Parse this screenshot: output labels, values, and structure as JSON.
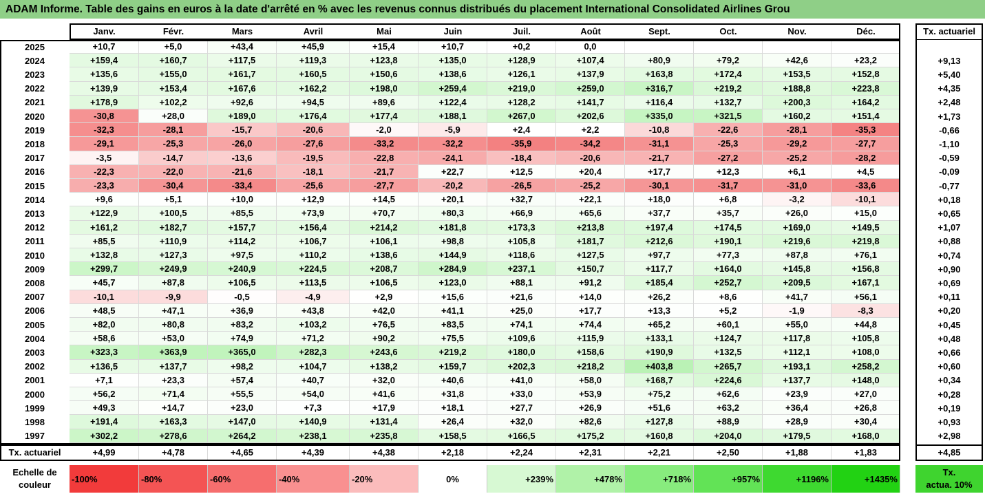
{
  "title": "ADAM Informe. Table des gains en euros à la date d'arrêté en % avec les revenus connus distribués du placement International Consolidated Airlines Grou",
  "months": [
    "Janv.",
    "Févr.",
    "Mars",
    "Avril",
    "Mai",
    "Juin",
    "Juil.",
    "Août",
    "Sept.",
    "Oct.",
    "Nov.",
    "Déc."
  ],
  "tx_header": "Tx. actuariel",
  "rows": [
    {
      "year": "2025",
      "values": [
        "+10,7",
        "+5,0",
        "+43,4",
        "+45,9",
        "+15,4",
        "+10,7",
        "+0,2",
        "0,0",
        "",
        "",
        "",
        ""
      ],
      "tx": ""
    },
    {
      "year": "2024",
      "values": [
        "+159,4",
        "+160,7",
        "+117,5",
        "+119,3",
        "+123,8",
        "+135,0",
        "+128,9",
        "+107,4",
        "+80,9",
        "+79,2",
        "+42,6",
        "+23,2"
      ],
      "tx": "+9,13"
    },
    {
      "year": "2023",
      "values": [
        "+135,6",
        "+155,0",
        "+161,7",
        "+160,5",
        "+150,6",
        "+138,6",
        "+126,1",
        "+137,9",
        "+163,8",
        "+172,4",
        "+153,5",
        "+152,8"
      ],
      "tx": "+5,40"
    },
    {
      "year": "2022",
      "values": [
        "+139,9",
        "+153,4",
        "+167,6",
        "+162,2",
        "+198,0",
        "+259,4",
        "+219,0",
        "+259,0",
        "+316,7",
        "+219,2",
        "+188,8",
        "+223,8"
      ],
      "tx": "+4,35"
    },
    {
      "year": "2021",
      "values": [
        "+178,9",
        "+102,2",
        "+92,6",
        "+94,5",
        "+89,6",
        "+122,4",
        "+128,2",
        "+141,7",
        "+116,4",
        "+132,7",
        "+200,3",
        "+164,2"
      ],
      "tx": "+2,48"
    },
    {
      "year": "2020",
      "values": [
        "-30,8",
        "+28,0",
        "+189,0",
        "+176,4",
        "+177,4",
        "+188,1",
        "+267,0",
        "+202,6",
        "+335,0",
        "+321,5",
        "+160,2",
        "+151,4"
      ],
      "tx": "+1,73"
    },
    {
      "year": "2019",
      "values": [
        "-32,3",
        "-28,1",
        "-15,7",
        "-20,6",
        "-2,0",
        "-5,9",
        "+2,4",
        "+2,2",
        "-10,8",
        "-22,6",
        "-28,1",
        "-35,3"
      ],
      "tx": "-0,66"
    },
    {
      "year": "2018",
      "values": [
        "-29,1",
        "-25,3",
        "-26,0",
        "-27,6",
        "-33,2",
        "-32,2",
        "-35,9",
        "-34,2",
        "-31,1",
        "-25,3",
        "-29,2",
        "-27,7"
      ],
      "tx": "-1,10"
    },
    {
      "year": "2017",
      "values": [
        "-3,5",
        "-14,7",
        "-13,6",
        "-19,5",
        "-22,8",
        "-24,1",
        "-18,4",
        "-20,6",
        "-21,7",
        "-27,2",
        "-25,2",
        "-28,2"
      ],
      "tx": "-0,59"
    },
    {
      "year": "2016",
      "values": [
        "-22,3",
        "-22,0",
        "-21,6",
        "-18,1",
        "-21,7",
        "+22,7",
        "+12,5",
        "+20,4",
        "+17,7",
        "+12,3",
        "+6,1",
        "+4,5"
      ],
      "tx": "-0,09"
    },
    {
      "year": "2015",
      "values": [
        "-23,3",
        "-30,4",
        "-33,4",
        "-25,6",
        "-27,7",
        "-20,2",
        "-26,5",
        "-25,2",
        "-30,1",
        "-31,7",
        "-31,0",
        "-33,6"
      ],
      "tx": "-0,77"
    },
    {
      "year": "2014",
      "values": [
        "+9,6",
        "+5,1",
        "+10,0",
        "+12,9",
        "+14,5",
        "+20,1",
        "+32,7",
        "+22,1",
        "+18,0",
        "+6,8",
        "-3,2",
        "-10,1"
      ],
      "tx": "+0,18"
    },
    {
      "year": "2013",
      "values": [
        "+122,9",
        "+100,5",
        "+85,5",
        "+73,9",
        "+70,7",
        "+80,3",
        "+66,9",
        "+65,6",
        "+37,7",
        "+35,7",
        "+26,0",
        "+15,0"
      ],
      "tx": "+0,65"
    },
    {
      "year": "2012",
      "values": [
        "+161,2",
        "+182,7",
        "+157,7",
        "+156,4",
        "+214,2",
        "+181,8",
        "+173,3",
        "+213,8",
        "+197,4",
        "+174,5",
        "+169,0",
        "+149,5"
      ],
      "tx": "+1,07"
    },
    {
      "year": "2011",
      "values": [
        "+85,5",
        "+110,9",
        "+114,2",
        "+106,7",
        "+106,1",
        "+98,8",
        "+105,8",
        "+181,7",
        "+212,6",
        "+190,1",
        "+219,6",
        "+219,8"
      ],
      "tx": "+0,88"
    },
    {
      "year": "2010",
      "values": [
        "+132,8",
        "+127,3",
        "+97,5",
        "+110,2",
        "+138,6",
        "+144,9",
        "+118,6",
        "+127,5",
        "+97,7",
        "+77,3",
        "+87,8",
        "+76,1"
      ],
      "tx": "+0,74"
    },
    {
      "year": "2009",
      "values": [
        "+299,7",
        "+249,9",
        "+240,9",
        "+224,5",
        "+208,7",
        "+284,9",
        "+237,1",
        "+150,7",
        "+117,7",
        "+164,0",
        "+145,8",
        "+156,8"
      ],
      "tx": "+0,90"
    },
    {
      "year": "2008",
      "values": [
        "+45,7",
        "+87,8",
        "+106,5",
        "+113,5",
        "+106,5",
        "+123,0",
        "+88,1",
        "+91,2",
        "+185,4",
        "+252,7",
        "+209,5",
        "+167,1"
      ],
      "tx": "+0,69"
    },
    {
      "year": "2007",
      "values": [
        "-10,1",
        "-9,9",
        "-0,5",
        "-4,9",
        "+2,9",
        "+15,6",
        "+21,6",
        "+14,0",
        "+26,2",
        "+8,6",
        "+41,7",
        "+56,1"
      ],
      "tx": "+0,11"
    },
    {
      "year": "2006",
      "values": [
        "+48,5",
        "+47,1",
        "+36,9",
        "+43,8",
        "+42,0",
        "+41,1",
        "+25,0",
        "+17,7",
        "+13,3",
        "+5,2",
        "-1,9",
        "-8,3"
      ],
      "tx": "+0,20"
    },
    {
      "year": "2005",
      "values": [
        "+82,0",
        "+80,8",
        "+83,2",
        "+103,2",
        "+76,5",
        "+83,5",
        "+74,1",
        "+74,4",
        "+65,2",
        "+60,1",
        "+55,0",
        "+44,8"
      ],
      "tx": "+0,45"
    },
    {
      "year": "2004",
      "values": [
        "+58,6",
        "+53,0",
        "+74,9",
        "+71,2",
        "+90,2",
        "+75,5",
        "+109,6",
        "+115,9",
        "+133,1",
        "+124,7",
        "+117,8",
        "+105,8"
      ],
      "tx": "+0,48"
    },
    {
      "year": "2003",
      "values": [
        "+323,3",
        "+363,9",
        "+365,0",
        "+282,3",
        "+243,6",
        "+219,2",
        "+180,0",
        "+158,6",
        "+190,9",
        "+132,5",
        "+112,1",
        "+108,0"
      ],
      "tx": "+0,66"
    },
    {
      "year": "2002",
      "values": [
        "+136,5",
        "+137,7",
        "+98,2",
        "+104,7",
        "+138,2",
        "+159,7",
        "+202,3",
        "+218,2",
        "+403,8",
        "+265,7",
        "+193,1",
        "+258,2"
      ],
      "tx": "+0,60"
    },
    {
      "year": "2001",
      "values": [
        "+7,1",
        "+23,3",
        "+57,4",
        "+40,7",
        "+32,0",
        "+40,6",
        "+41,0",
        "+58,0",
        "+168,7",
        "+224,6",
        "+137,7",
        "+148,0"
      ],
      "tx": "+0,34"
    },
    {
      "year": "2000",
      "values": [
        "+56,2",
        "+71,4",
        "+55,5",
        "+54,0",
        "+41,6",
        "+31,8",
        "+33,0",
        "+53,9",
        "+75,2",
        "+62,6",
        "+23,9",
        "+27,0"
      ],
      "tx": "+0,28"
    },
    {
      "year": "1999",
      "values": [
        "+49,3",
        "+14,7",
        "+23,0",
        "+7,3",
        "+17,9",
        "+18,1",
        "+27,7",
        "+26,9",
        "+51,6",
        "+63,2",
        "+36,4",
        "+26,8"
      ],
      "tx": "+0,19"
    },
    {
      "year": "1998",
      "values": [
        "+191,4",
        "+163,3",
        "+147,0",
        "+140,9",
        "+131,4",
        "+26,4",
        "+32,0",
        "+82,6",
        "+127,8",
        "+88,9",
        "+28,9",
        "+30,4"
      ],
      "tx": "+0,93"
    },
    {
      "year": "1997",
      "values": [
        "+302,2",
        "+278,6",
        "+264,2",
        "+238,1",
        "+235,8",
        "+158,5",
        "+166,5",
        "+175,2",
        "+160,8",
        "+204,0",
        "+179,5",
        "+168,0"
      ],
      "tx": "+2,98"
    }
  ],
  "footer": {
    "label": "Tx. actuariel",
    "values": [
      "+4,99",
      "+4,78",
      "+4,65",
      "+4,39",
      "+4,38",
      "+2,18",
      "+2,24",
      "+2,31",
      "+2,21",
      "+2,50",
      "+1,88",
      "+1,83"
    ],
    "tx": "+4,85"
  },
  "scale": {
    "label_line1": "Echelle de",
    "label_line2": "couleur",
    "items": [
      {
        "text": "-100%",
        "color": "#f23b3b",
        "align": "left"
      },
      {
        "text": "-80%",
        "color": "#f45454",
        "align": "left"
      },
      {
        "text": "-60%",
        "color": "#f66e6e",
        "align": "left"
      },
      {
        "text": "-40%",
        "color": "#f99090",
        "align": "left"
      },
      {
        "text": "-20%",
        "color": "#fbbcbc",
        "align": "left"
      },
      {
        "text": "0%",
        "color": "#ffffff",
        "align": "center"
      },
      {
        "text": "+239%",
        "color": "#d7f9d3",
        "align": "right"
      },
      {
        "text": "+478%",
        "color": "#b0f2a8",
        "align": "right"
      },
      {
        "text": "+718%",
        "color": "#88ec7e",
        "align": "right"
      },
      {
        "text": "+957%",
        "color": "#62e356",
        "align": "right"
      },
      {
        "text": "+1196%",
        "color": "#3ed930",
        "align": "right"
      },
      {
        "text": "+1435%",
        "color": "#22d213",
        "align": "right"
      }
    ],
    "tx_line1": "Tx.",
    "tx_line2": "actua. 10%",
    "tx_color": "#3fd42f"
  },
  "colors": {
    "title_bg": "#8fcf87",
    "negative_max": "#f23b3b",
    "positive_max": "#22d213"
  }
}
